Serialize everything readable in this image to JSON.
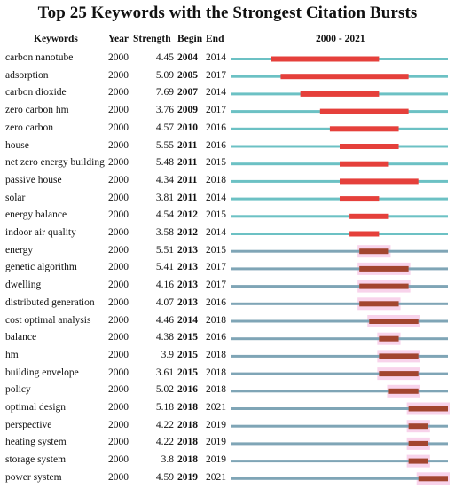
{
  "title": "Top 25 Keywords with the Strongest Citation Bursts",
  "headers": {
    "keywords": "Keywords",
    "year": "Year",
    "strength": "Strength",
    "begin": "Begin",
    "end": "End",
    "range": "2000 - 2021"
  },
  "chart_data": {
    "type": "table",
    "x_range": [
      2000,
      2021
    ],
    "colors": {
      "baseline_early": "#6cc1c4",
      "baseline_late": "#7fa5b6",
      "burst_early": "#e5403b",
      "burst_late": "#a2452f",
      "halo": "#f6c4e4"
    },
    "rows": [
      {
        "keyword": "carbon nanotube",
        "year": "2000",
        "strength": "4.45",
        "begin": "2004",
        "end": "2014"
      },
      {
        "keyword": "adsorption",
        "year": "2000",
        "strength": "5.09",
        "begin": "2005",
        "end": "2017"
      },
      {
        "keyword": "carbon dioxide",
        "year": "2000",
        "strength": "7.69",
        "begin": "2007",
        "end": "2014"
      },
      {
        "keyword": "zero carbon hm",
        "year": "2000",
        "strength": "3.76",
        "begin": "2009",
        "end": "2017"
      },
      {
        "keyword": "zero carbon",
        "year": "2000",
        "strength": "4.57",
        "begin": "2010",
        "end": "2016"
      },
      {
        "keyword": "house",
        "year": "2000",
        "strength": "5.55",
        "begin": "2011",
        "end": "2016"
      },
      {
        "keyword": "net zero energy building",
        "year": "2000",
        "strength": "5.48",
        "begin": "2011",
        "end": "2015"
      },
      {
        "keyword": "passive house",
        "year": "2000",
        "strength": "4.34",
        "begin": "2011",
        "end": "2018"
      },
      {
        "keyword": "solar",
        "year": "2000",
        "strength": "3.81",
        "begin": "2011",
        "end": "2014"
      },
      {
        "keyword": "energy balance",
        "year": "2000",
        "strength": "4.54",
        "begin": "2012",
        "end": "2015"
      },
      {
        "keyword": "indoor air quality",
        "year": "2000",
        "strength": "3.58",
        "begin": "2012",
        "end": "2014"
      },
      {
        "keyword": "energy",
        "year": "2000",
        "strength": "5.51",
        "begin": "2013",
        "end": "2015"
      },
      {
        "keyword": "genetic algorithm",
        "year": "2000",
        "strength": "5.41",
        "begin": "2013",
        "end": "2017"
      },
      {
        "keyword": "dwelling",
        "year": "2000",
        "strength": "4.16",
        "begin": "2013",
        "end": "2017"
      },
      {
        "keyword": "distributed generation",
        "year": "2000",
        "strength": "4.07",
        "begin": "2013",
        "end": "2016"
      },
      {
        "keyword": "cost optimal analysis",
        "year": "2000",
        "strength": "4.46",
        "begin": "2014",
        "end": "2018"
      },
      {
        "keyword": "balance",
        "year": "2000",
        "strength": "4.38",
        "begin": "2015",
        "end": "2016"
      },
      {
        "keyword": "hm",
        "year": "2000",
        "strength": "3.9",
        "begin": "2015",
        "end": "2018"
      },
      {
        "keyword": "building envelope",
        "year": "2000",
        "strength": "3.61",
        "begin": "2015",
        "end": "2018"
      },
      {
        "keyword": "policy",
        "year": "2000",
        "strength": "5.02",
        "begin": "2016",
        "end": "2018"
      },
      {
        "keyword": "optimal design",
        "year": "2000",
        "strength": "5.18",
        "begin": "2018",
        "end": "2021"
      },
      {
        "keyword": "perspective",
        "year": "2000",
        "strength": "4.22",
        "begin": "2018",
        "end": "2019"
      },
      {
        "keyword": "heating system",
        "year": "2000",
        "strength": "4.22",
        "begin": "2018",
        "end": "2019"
      },
      {
        "keyword": "storage system",
        "year": "2000",
        "strength": "3.8",
        "begin": "2018",
        "end": "2019"
      },
      {
        "keyword": "power system",
        "year": "2000",
        "strength": "4.59",
        "begin": "2019",
        "end": "2021"
      }
    ]
  }
}
